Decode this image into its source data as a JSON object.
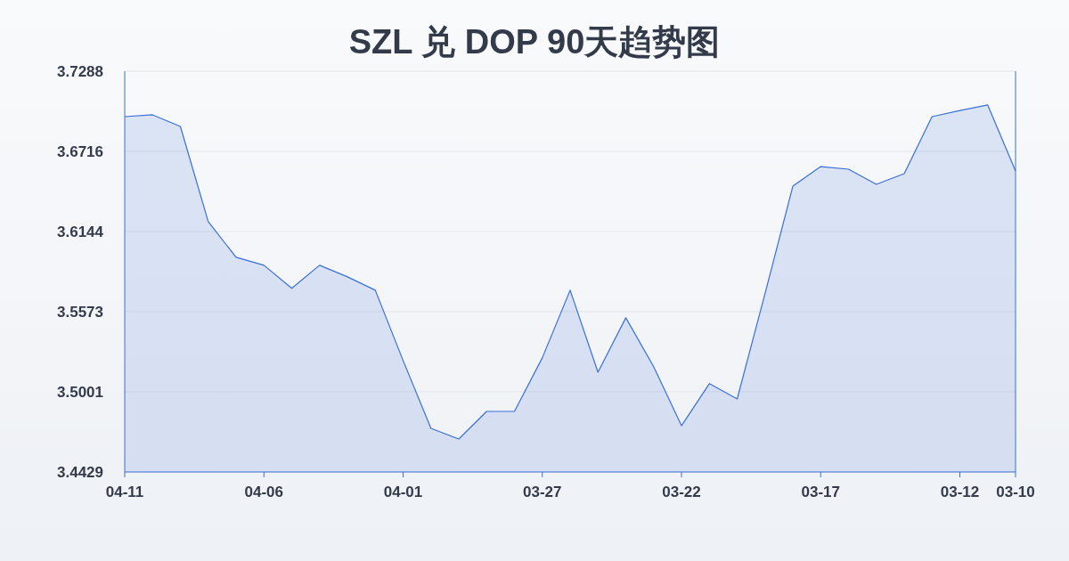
{
  "chart_data": {
    "type": "area",
    "title": "SZL 兑 DOP 90天趋势图",
    "categories": [
      "04-11",
      null,
      null,
      null,
      null,
      "04-06",
      null,
      null,
      null,
      null,
      "04-01",
      null,
      null,
      null,
      null,
      "03-27",
      null,
      null,
      null,
      null,
      "03-22",
      null,
      null,
      null,
      null,
      "03-17",
      null,
      null,
      null,
      null,
      "03-12",
      null,
      "03-10"
    ],
    "series": [
      {
        "color": "#3a6fd6",
        "values": [
          3.6964,
          3.6977,
          3.6894,
          3.6215,
          3.5961,
          3.5904,
          3.5739,
          3.5904,
          3.5821,
          3.5726,
          3.5224,
          3.474,
          3.4664,
          3.4861,
          3.4861,
          3.5243,
          3.5726,
          3.5141,
          3.5529,
          3.518,
          3.4759,
          3.5059,
          3.495,
          3.57,
          3.6468,
          3.6608,
          3.6589,
          3.6481,
          3.6557,
          3.6964,
          3.7008,
          3.7047,
          3.6576
        ]
      }
    ],
    "ylim": [
      3.4429,
      3.7288
    ],
    "yticks": [
      3.4429,
      3.5001,
      3.5573,
      3.6144,
      3.6716,
      3.7288
    ],
    "grid": "y",
    "marker": "none",
    "line_style": "solid"
  }
}
